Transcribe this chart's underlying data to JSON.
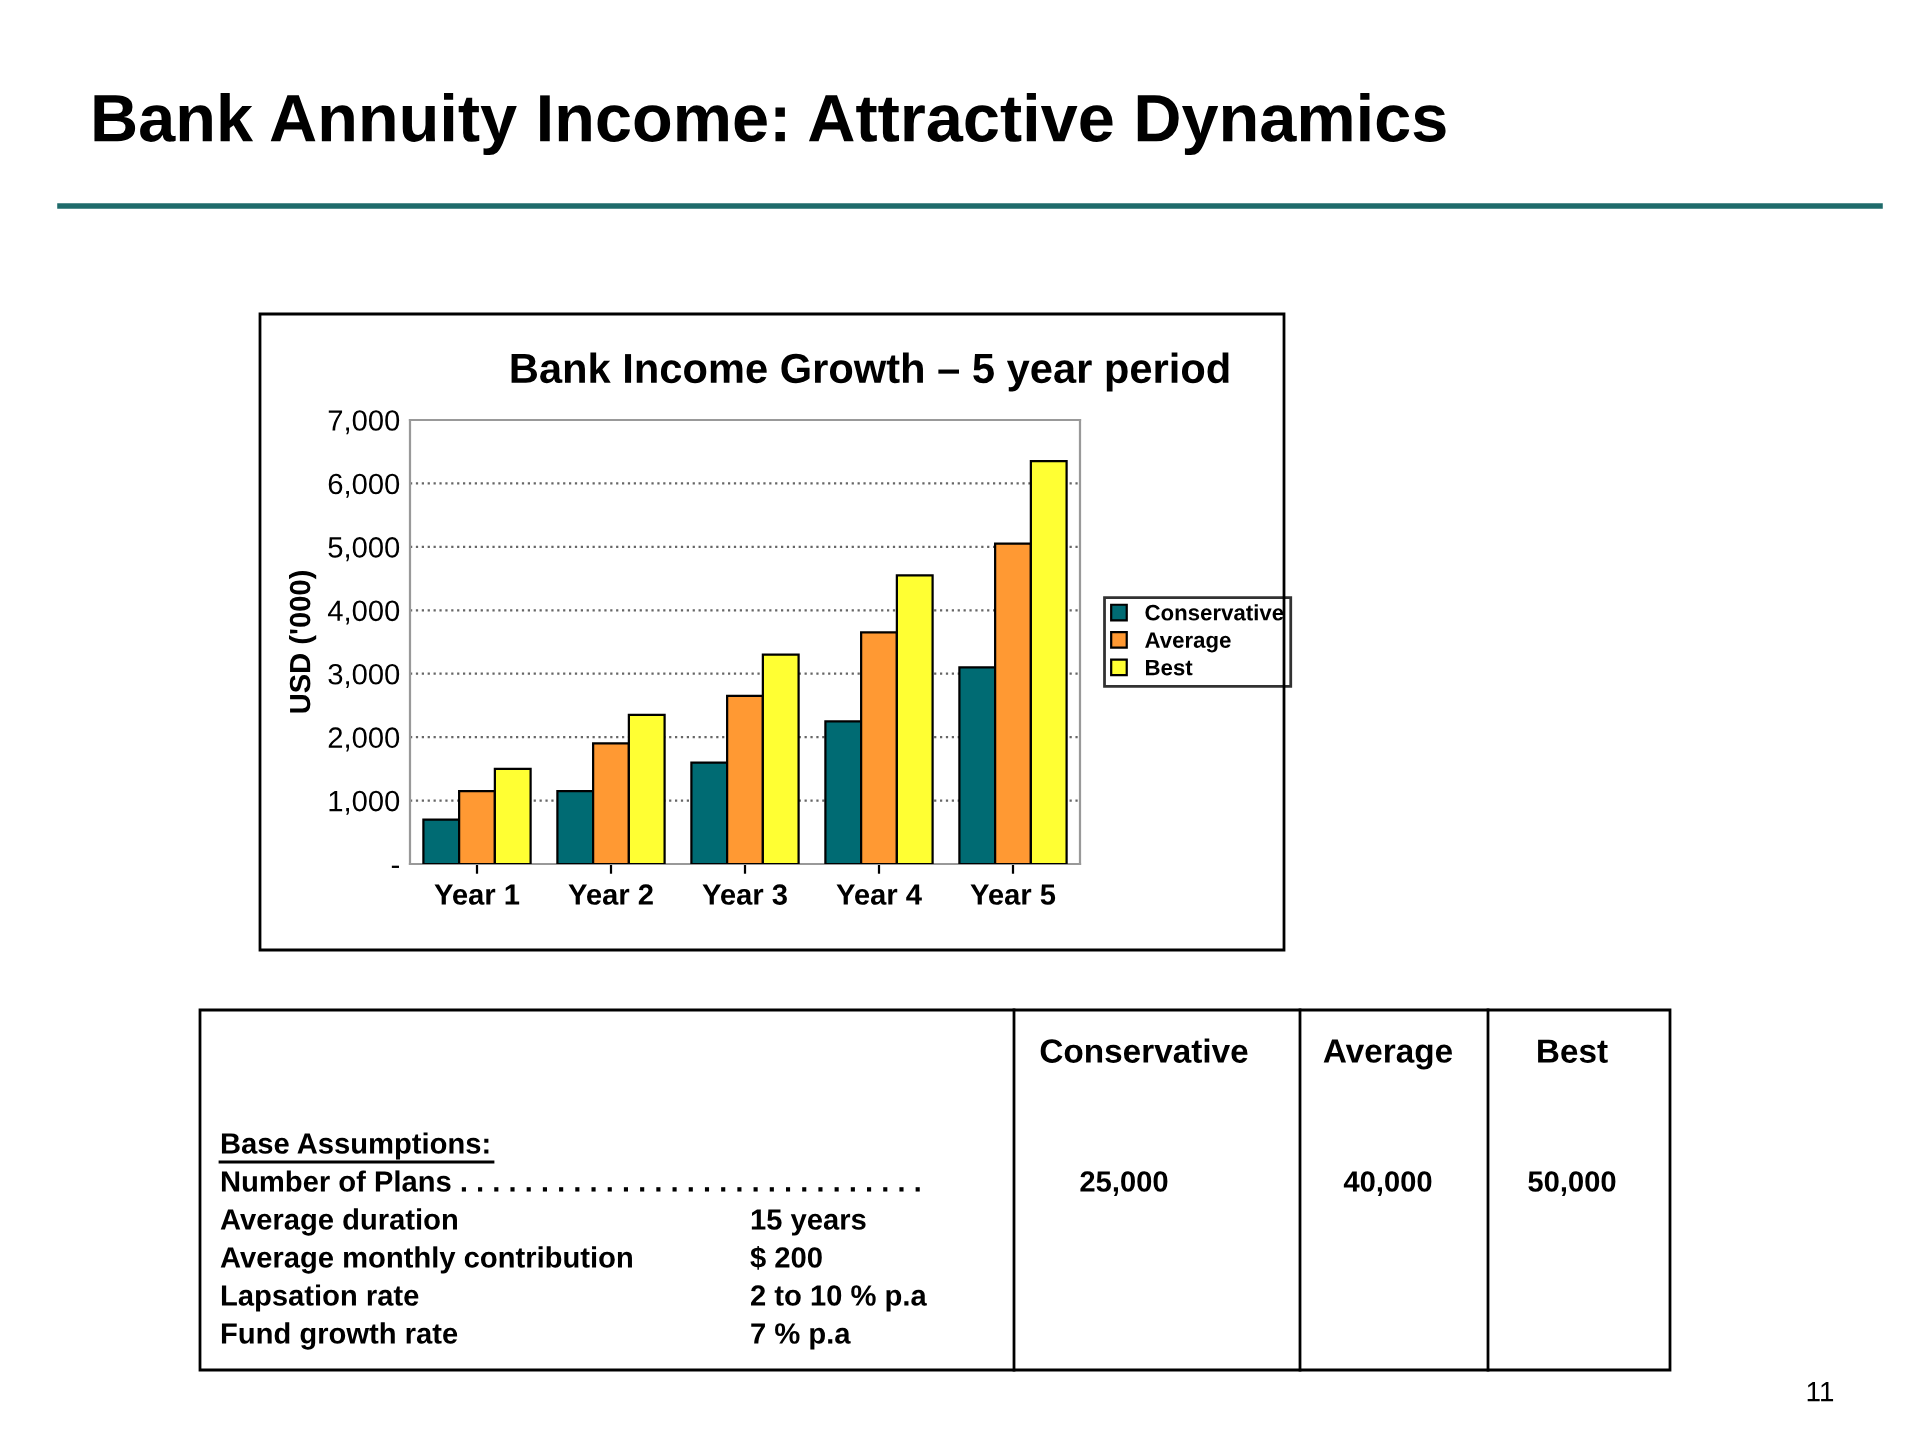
{
  "chart_data": {
    "type": "bar",
    "title": "Bank Annuity Income: Attractive Dynamics",
    "subtitle": "Bank Income Growth – 5 year period",
    "ylabel": "USD ('000)",
    "categories": [
      "Year 1",
      "Year 2",
      "Year 3",
      "Year 4",
      "Year 5"
    ],
    "series": [
      {
        "name": "Conservative",
        "color": "#006b73",
        "values": [
          700,
          1150,
          1600,
          2250,
          3100
        ]
      },
      {
        "name": "Average",
        "color": "#ff9933",
        "values": [
          1150,
          1900,
          2650,
          3650,
          5050
        ]
      },
      {
        "name": "Best",
        "color": "#ffff33",
        "values": [
          1500,
          2350,
          3300,
          4550,
          6350
        ]
      }
    ],
    "ylim": [
      0,
      7000
    ],
    "yticks": [
      {
        "value": 0,
        "label": "-"
      },
      {
        "value": 1000,
        "label": "1,000"
      },
      {
        "value": 2000,
        "label": "2,000"
      },
      {
        "value": 3000,
        "label": "3,000"
      },
      {
        "value": 4000,
        "label": "4,000"
      },
      {
        "value": 5000,
        "label": "5,000"
      },
      {
        "value": 6000,
        "label": "6,000"
      },
      {
        "value": 7000,
        "label": "7,000"
      }
    ],
    "grid": "y",
    "legend": "right",
    "annotations": [
      "Conservative",
      "Average",
      "Best",
      "Base Assumptions:",
      "Number of Plans . . . . . . . . . . . . . . . . . . . . . . . . . . . . .",
      "25,000",
      "40,000",
      "50,000",
      "Average duration",
      "15 years",
      "Average monthly contribution",
      "$ 200",
      "Lapsation rate",
      "2 to 10 % p.a",
      "Fund growth rate",
      "7 % p.a",
      "11"
    ]
  }
}
